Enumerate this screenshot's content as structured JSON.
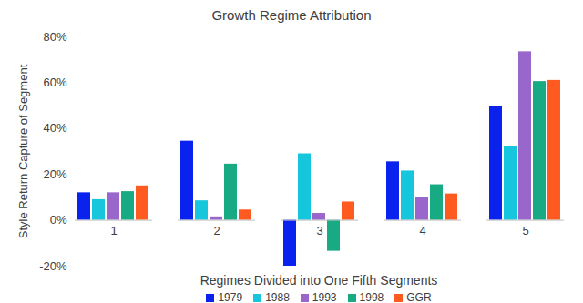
{
  "chart_data": {
    "type": "bar",
    "title": "Growth Regime Attribution",
    "x_label": "Regimes Divided into One Fifth Segments",
    "y_label": "Style Return Capture of Segment",
    "categories": [
      "1",
      "2",
      "3",
      "4",
      "5"
    ],
    "series": [
      {
        "name": "1979",
        "color": "#0a22ee",
        "values": [
          12,
          34.5,
          -20,
          25.5,
          49.5
        ]
      },
      {
        "name": "1988",
        "color": "#16c6dc",
        "values": [
          9,
          8.5,
          29,
          21.5,
          32
        ]
      },
      {
        "name": "1993",
        "color": "#9966cc",
        "values": [
          12,
          1.5,
          3,
          10,
          73.5
        ]
      },
      {
        "name": "1998",
        "color": "#18aa82",
        "values": [
          12.5,
          24.5,
          -13.5,
          15.5,
          60.5
        ]
      },
      {
        "name": "GGR",
        "color": "#ff5a1f",
        "values": [
          15,
          4.5,
          8,
          11.5,
          61
        ]
      }
    ],
    "ylim": [
      -20,
      80
    ],
    "yticks": [
      {
        "value": -20,
        "label": "-20%"
      },
      {
        "value": 0,
        "label": "0%"
      },
      {
        "value": 20,
        "label": "20%"
      },
      {
        "value": 40,
        "label": "40%"
      },
      {
        "value": 60,
        "label": "60%"
      },
      {
        "value": 80,
        "label": "80%"
      }
    ],
    "grid": false,
    "legend": "bottom"
  }
}
